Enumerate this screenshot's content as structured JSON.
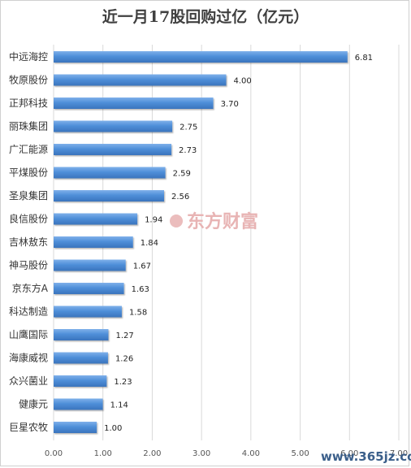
{
  "chart_data": {
    "type": "bar",
    "orientation": "horizontal",
    "title": "近一月17股回购过亿（亿元）",
    "categories": [
      "中远海控",
      "牧原股份",
      "正邦科技",
      "丽珠集团",
      "广汇能源",
      "平煤股份",
      "圣泉集团",
      "良信股份",
      "吉林敖东",
      "神马股份",
      "京东方A",
      "科达制造",
      "山鹰国际",
      "海康威视",
      "众兴菌业",
      "健康元",
      "巨星农牧"
    ],
    "values": [
      6.81,
      4.0,
      3.7,
      2.75,
      2.73,
      2.59,
      2.56,
      1.94,
      1.84,
      1.67,
      1.63,
      1.58,
      1.27,
      1.26,
      1.23,
      1.14,
      1.0
    ],
    "value_labels": [
      "6.81",
      "4.00",
      "3.70",
      "2.75",
      "2.73",
      "2.59",
      "2.56",
      "1.94",
      "1.84",
      "1.67",
      "1.63",
      "1.58",
      "1.27",
      "1.26",
      "1.23",
      "1.14",
      "1.00"
    ],
    "xticks": [
      "0.00",
      "1.00",
      "2.00",
      "3.00",
      "4.00",
      "5.00",
      "6.00",
      "7.00"
    ],
    "xlim": [
      0,
      8
    ],
    "grid": true,
    "bar_color": "#4f8fd9"
  },
  "watermark": "东方财富",
  "site_watermark": "www.365jz.com"
}
